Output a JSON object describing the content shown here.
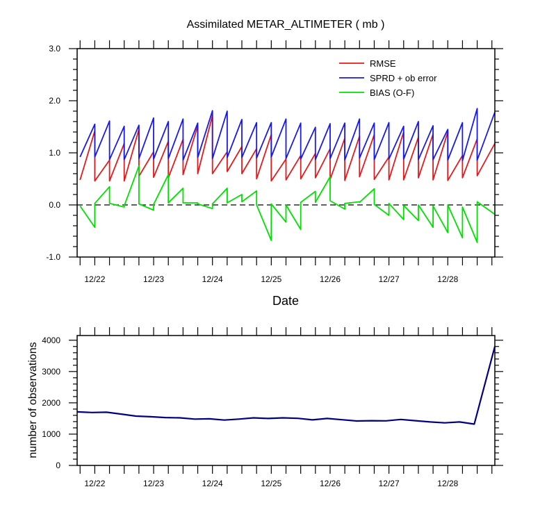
{
  "chart_data": [
    {
      "type": "line",
      "title": "Assimilated METAR_ALTIMETER ( mb )",
      "xlabel": "Date",
      "ylabel": "",
      "ylim": [
        -1.0,
        3.0
      ],
      "yticks": [
        "-1.0",
        "0.0",
        "1.0",
        "2.0",
        "3.0"
      ],
      "xlim": [
        21.7,
        28.8
      ],
      "xtick_labels": [
        "12/22",
        "12/23",
        "12/24",
        "12/25",
        "12/26",
        "12/27",
        "12/28"
      ],
      "xtick_values": [
        22,
        23,
        24,
        25,
        26,
        27,
        28
      ],
      "zero_line": "dashed",
      "legend_position": "top-right",
      "series": [
        {
          "name": "RMSE",
          "color": "#e31a1c",
          "points": [
            [
              21.75,
              0.48
            ],
            [
              22.0,
              1.42
            ],
            [
              22.0,
              0.46
            ],
            [
              22.25,
              0.86
            ],
            [
              22.25,
              0.46
            ],
            [
              22.5,
              1.18
            ],
            [
              22.5,
              0.46
            ],
            [
              22.75,
              1.45
            ],
            [
              22.75,
              0.55
            ],
            [
              23.0,
              1.02
            ],
            [
              23.0,
              0.53
            ],
            [
              23.25,
              1.22
            ],
            [
              23.25,
              0.52
            ],
            [
              23.5,
              1.26
            ],
            [
              23.5,
              0.58
            ],
            [
              23.75,
              1.52
            ],
            [
              23.75,
              0.6
            ],
            [
              24.0,
              1.72
            ],
            [
              24.0,
              0.6
            ],
            [
              24.25,
              1.02
            ],
            [
              24.25,
              0.64
            ],
            [
              24.5,
              1.12
            ],
            [
              24.5,
              0.6
            ],
            [
              24.75,
              1.08
            ],
            [
              24.75,
              0.5
            ],
            [
              25.0,
              1.35
            ],
            [
              25.0,
              0.46
            ],
            [
              25.25,
              0.88
            ],
            [
              25.25,
              0.48
            ],
            [
              25.5,
              0.95
            ],
            [
              25.5,
              0.5
            ],
            [
              25.75,
              0.99
            ],
            [
              25.75,
              0.52
            ],
            [
              26.0,
              1.08
            ],
            [
              26.0,
              0.49
            ],
            [
              26.25,
              1.28
            ],
            [
              26.25,
              0.47
            ],
            [
              26.5,
              1.32
            ],
            [
              26.5,
              0.54
            ],
            [
              26.75,
              1.35
            ],
            [
              26.75,
              0.49
            ],
            [
              27.0,
              0.92
            ],
            [
              27.0,
              0.48
            ],
            [
              27.25,
              1.4
            ],
            [
              27.25,
              0.48
            ],
            [
              27.5,
              1.3
            ],
            [
              27.5,
              0.52
            ],
            [
              27.75,
              1.36
            ],
            [
              27.75,
              0.48
            ],
            [
              28.0,
              1.4
            ],
            [
              28.0,
              0.47
            ],
            [
              28.25,
              0.95
            ],
            [
              28.25,
              0.52
            ],
            [
              28.5,
              1.27
            ],
            [
              28.5,
              0.56
            ],
            [
              28.8,
              1.18
            ]
          ]
        },
        {
          "name": "SPRD + ob error",
          "color": "#1a1ae6",
          "points": [
            [
              21.75,
              0.92
            ],
            [
              22.0,
              1.55
            ],
            [
              22.0,
              0.92
            ],
            [
              22.25,
              1.61
            ],
            [
              22.25,
              0.87
            ],
            [
              22.5,
              1.51
            ],
            [
              22.5,
              0.87
            ],
            [
              22.75,
              1.53
            ],
            [
              22.75,
              0.89
            ],
            [
              23.0,
              1.67
            ],
            [
              23.0,
              0.88
            ],
            [
              23.25,
              1.6
            ],
            [
              23.25,
              0.89
            ],
            [
              23.5,
              1.65
            ],
            [
              23.5,
              0.86
            ],
            [
              23.75,
              1.57
            ],
            [
              23.75,
              0.91
            ],
            [
              24.0,
              1.81
            ],
            [
              24.0,
              0.89
            ],
            [
              24.25,
              1.8
            ],
            [
              24.25,
              0.91
            ],
            [
              24.5,
              1.64
            ],
            [
              24.5,
              0.91
            ],
            [
              24.75,
              1.58
            ],
            [
              24.75,
              0.9
            ],
            [
              25.0,
              1.58
            ],
            [
              25.0,
              0.92
            ],
            [
              25.25,
              1.65
            ],
            [
              25.25,
              0.89
            ],
            [
              25.5,
              1.57
            ],
            [
              25.5,
              0.88
            ],
            [
              25.75,
              1.49
            ],
            [
              25.75,
              0.87
            ],
            [
              26.0,
              1.56
            ],
            [
              26.0,
              0.89
            ],
            [
              26.25,
              1.57
            ],
            [
              26.25,
              0.86
            ],
            [
              26.5,
              1.65
            ],
            [
              26.5,
              0.9
            ],
            [
              26.75,
              1.57
            ],
            [
              26.75,
              0.87
            ],
            [
              27.0,
              1.58
            ],
            [
              27.0,
              0.88
            ],
            [
              27.25,
              1.51
            ],
            [
              27.25,
              0.88
            ],
            [
              27.5,
              1.6
            ],
            [
              27.5,
              0.87
            ],
            [
              27.75,
              1.52
            ],
            [
              27.75,
              0.87
            ],
            [
              28.0,
              1.45
            ],
            [
              28.0,
              0.86
            ],
            [
              28.25,
              1.58
            ],
            [
              28.25,
              0.85
            ],
            [
              28.5,
              1.85
            ],
            [
              28.5,
              0.86
            ],
            [
              28.8,
              1.78
            ]
          ]
        },
        {
          "name": "BIAS (O-F)",
          "color": "#00e000",
          "points": [
            [
              21.75,
              -0.02
            ],
            [
              22.0,
              -0.43
            ],
            [
              22.0,
              0.03
            ],
            [
              22.25,
              0.35
            ],
            [
              22.25,
              0.03
            ],
            [
              22.5,
              -0.04
            ],
            [
              22.5,
              -0.02
            ],
            [
              22.75,
              0.75
            ],
            [
              22.75,
              0.02
            ],
            [
              23.0,
              -0.1
            ],
            [
              23.0,
              0.01
            ],
            [
              23.25,
              0.58
            ],
            [
              23.25,
              0.04
            ],
            [
              23.5,
              0.32
            ],
            [
              23.5,
              0.04
            ],
            [
              23.75,
              0.04
            ],
            [
              23.75,
              0.02
            ],
            [
              24.0,
              -0.07
            ],
            [
              24.0,
              0.02
            ],
            [
              24.25,
              0.32
            ],
            [
              24.25,
              0.04
            ],
            [
              24.5,
              0.2
            ],
            [
              24.5,
              0.06
            ],
            [
              24.75,
              0.27
            ],
            [
              24.75,
              0.0
            ],
            [
              25.0,
              -0.68
            ],
            [
              25.0,
              0.02
            ],
            [
              25.25,
              -0.33
            ],
            [
              25.25,
              0.0
            ],
            [
              25.5,
              -0.47
            ],
            [
              25.5,
              0.05
            ],
            [
              25.75,
              0.26
            ],
            [
              25.75,
              0.05
            ],
            [
              26.0,
              0.54
            ],
            [
              26.0,
              0.08
            ],
            [
              26.25,
              -0.08
            ],
            [
              26.25,
              0.03
            ],
            [
              26.5,
              0.06
            ],
            [
              26.5,
              0.05
            ],
            [
              26.75,
              0.31
            ],
            [
              26.75,
              0.01
            ],
            [
              27.0,
              -0.2
            ],
            [
              27.0,
              0.03
            ],
            [
              27.25,
              -0.28
            ],
            [
              27.25,
              -0.01
            ],
            [
              27.5,
              -0.3
            ],
            [
              27.5,
              0.0
            ],
            [
              27.75,
              -0.43
            ],
            [
              27.75,
              -0.02
            ],
            [
              28.0,
              -0.53
            ],
            [
              28.0,
              0.0
            ],
            [
              28.25,
              -0.63
            ],
            [
              28.25,
              -0.04
            ],
            [
              28.5,
              -0.72
            ],
            [
              28.5,
              0.06
            ],
            [
              28.8,
              -0.18
            ]
          ]
        }
      ]
    },
    {
      "type": "line",
      "title": "",
      "xlabel": "",
      "ylabel": "number of observations",
      "ylim": [
        0,
        4150
      ],
      "yticks": [
        "0",
        "1000",
        "2000",
        "3000",
        "4000"
      ],
      "xlim": [
        21.7,
        28.8
      ],
      "xtick_labels": [
        "12/22",
        "12/23",
        "12/24",
        "12/25",
        "12/26",
        "12/27",
        "12/28"
      ],
      "xtick_values": [
        22,
        23,
        24,
        25,
        26,
        27,
        28
      ],
      "series": [
        {
          "name": "",
          "color": "#000080",
          "points": [
            [
              21.7,
              1710
            ],
            [
              21.95,
              1690
            ],
            [
              22.2,
              1700
            ],
            [
              22.45,
              1640
            ],
            [
              22.7,
              1575
            ],
            [
              22.95,
              1555
            ],
            [
              23.2,
              1530
            ],
            [
              23.45,
              1520
            ],
            [
              23.7,
              1480
            ],
            [
              23.95,
              1490
            ],
            [
              24.2,
              1450
            ],
            [
              24.45,
              1480
            ],
            [
              24.7,
              1520
            ],
            [
              24.95,
              1500
            ],
            [
              25.2,
              1520
            ],
            [
              25.45,
              1505
            ],
            [
              25.7,
              1455
            ],
            [
              25.95,
              1500
            ],
            [
              26.2,
              1460
            ],
            [
              26.45,
              1420
            ],
            [
              26.7,
              1430
            ],
            [
              26.95,
              1425
            ],
            [
              27.2,
              1470
            ],
            [
              27.45,
              1430
            ],
            [
              27.7,
              1390
            ],
            [
              27.95,
              1360
            ],
            [
              28.2,
              1390
            ],
            [
              28.45,
              1320
            ],
            [
              28.8,
              3800
            ]
          ]
        }
      ]
    }
  ]
}
